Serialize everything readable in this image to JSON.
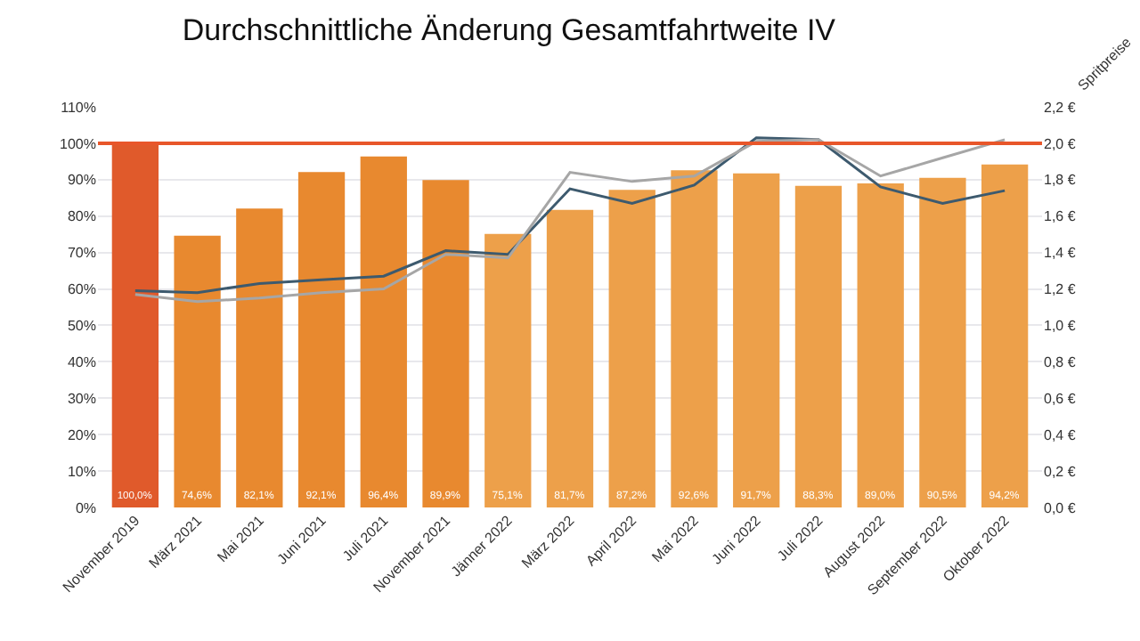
{
  "chart_data": {
    "type": "bar",
    "title": "Durchschnittliche Änderung Gesamtfahrtweite IV",
    "categories": [
      "November 2019",
      "März 2021",
      "Mai 2021",
      "Juni 2021",
      "Juli 2021",
      "November 2021",
      "Jänner 2022",
      "März 2022",
      "April 2022",
      "Mai 2022",
      "Juni 2022",
      "Juli 2022",
      "August 2022",
      "September 2022",
      "Oktober 2022"
    ],
    "series": [
      {
        "colors": [
          "#e05a2b",
          "#e8892f",
          "#e8892f",
          "#e8892f",
          "#e8892f",
          "#e8892f",
          "#eda04a",
          "#eda04a",
          "#eda04a",
          "#eda04a",
          "#eda04a",
          "#eda04a",
          "#eda04a",
          "#eda04a",
          "#eda04a"
        ],
        "values": [
          100.0,
          74.6,
          82.1,
          92.1,
          96.4,
          89.9,
          75.1,
          81.7,
          87.2,
          92.6,
          91.7,
          88.3,
          89.0,
          90.5,
          94.2
        ],
        "value_labels": [
          "100,0%",
          "74,6%",
          "82,1%",
          "92,1%",
          "96,4%",
          "89,9%",
          "75,1%",
          "81,7%",
          "87,2%",
          "92,6%",
          "91,7%",
          "88,3%",
          "89,0%",
          "90,5%",
          "94,2%"
        ]
      },
      {
        "type": "line",
        "axis": "y2",
        "color": "#3d5a6e",
        "values": [
          1.19,
          1.18,
          1.23,
          1.25,
          1.27,
          1.41,
          1.39,
          1.75,
          1.67,
          1.77,
          2.03,
          2.02,
          1.76,
          1.67,
          1.74
        ]
      },
      {
        "type": "line",
        "axis": "y2",
        "color": "#a6a6a6",
        "values": [
          1.17,
          1.13,
          1.15,
          1.18,
          1.2,
          1.39,
          1.37,
          1.84,
          1.79,
          1.82,
          2.01,
          2.02,
          1.82,
          1.92,
          2.02
        ]
      }
    ],
    "y2label": "Spritpreise",
    "ylim": [
      0,
      110
    ],
    "yticks": [
      {
        "value": 0,
        "label": "0%"
      },
      {
        "value": 10,
        "label": "10%"
      },
      {
        "value": 20,
        "label": "20%"
      },
      {
        "value": 30,
        "label": "30%"
      },
      {
        "value": 40,
        "label": "40%"
      },
      {
        "value": 50,
        "label": "50%"
      },
      {
        "value": 60,
        "label": "60%"
      },
      {
        "value": 70,
        "label": "70%"
      },
      {
        "value": 80,
        "label": "80%"
      },
      {
        "value": 90,
        "label": "90%"
      },
      {
        "value": 100,
        "label": "100%"
      },
      {
        "value": 110,
        "label": "110%"
      }
    ],
    "y2lim": [
      0,
      2.2
    ],
    "y2ticks": [
      {
        "value": 0,
        "label": "0,0 €"
      },
      {
        "value": 0.2,
        "label": "0,2 €"
      },
      {
        "value": 0.4,
        "label": "0,4 €"
      },
      {
        "value": 0.6,
        "label": "0,6 €"
      },
      {
        "value": 0.8,
        "label": "0,8 €"
      },
      {
        "value": 1.0,
        "label": "1,0 €"
      },
      {
        "value": 1.2,
        "label": "1,2 €"
      },
      {
        "value": 1.4,
        "label": "1,4 €"
      },
      {
        "value": 1.6,
        "label": "1,6 €"
      },
      {
        "value": 1.8,
        "label": "1,8 €"
      },
      {
        "value": 2.0,
        "label": "2,0 €"
      },
      {
        "value": 2.2,
        "label": "2,2 €"
      }
    ],
    "ref_lines": [
      {
        "axis": "y",
        "value": 100,
        "color": "#e8562a"
      }
    ],
    "grid": "y",
    "legend": false,
    "marker": "none"
  }
}
